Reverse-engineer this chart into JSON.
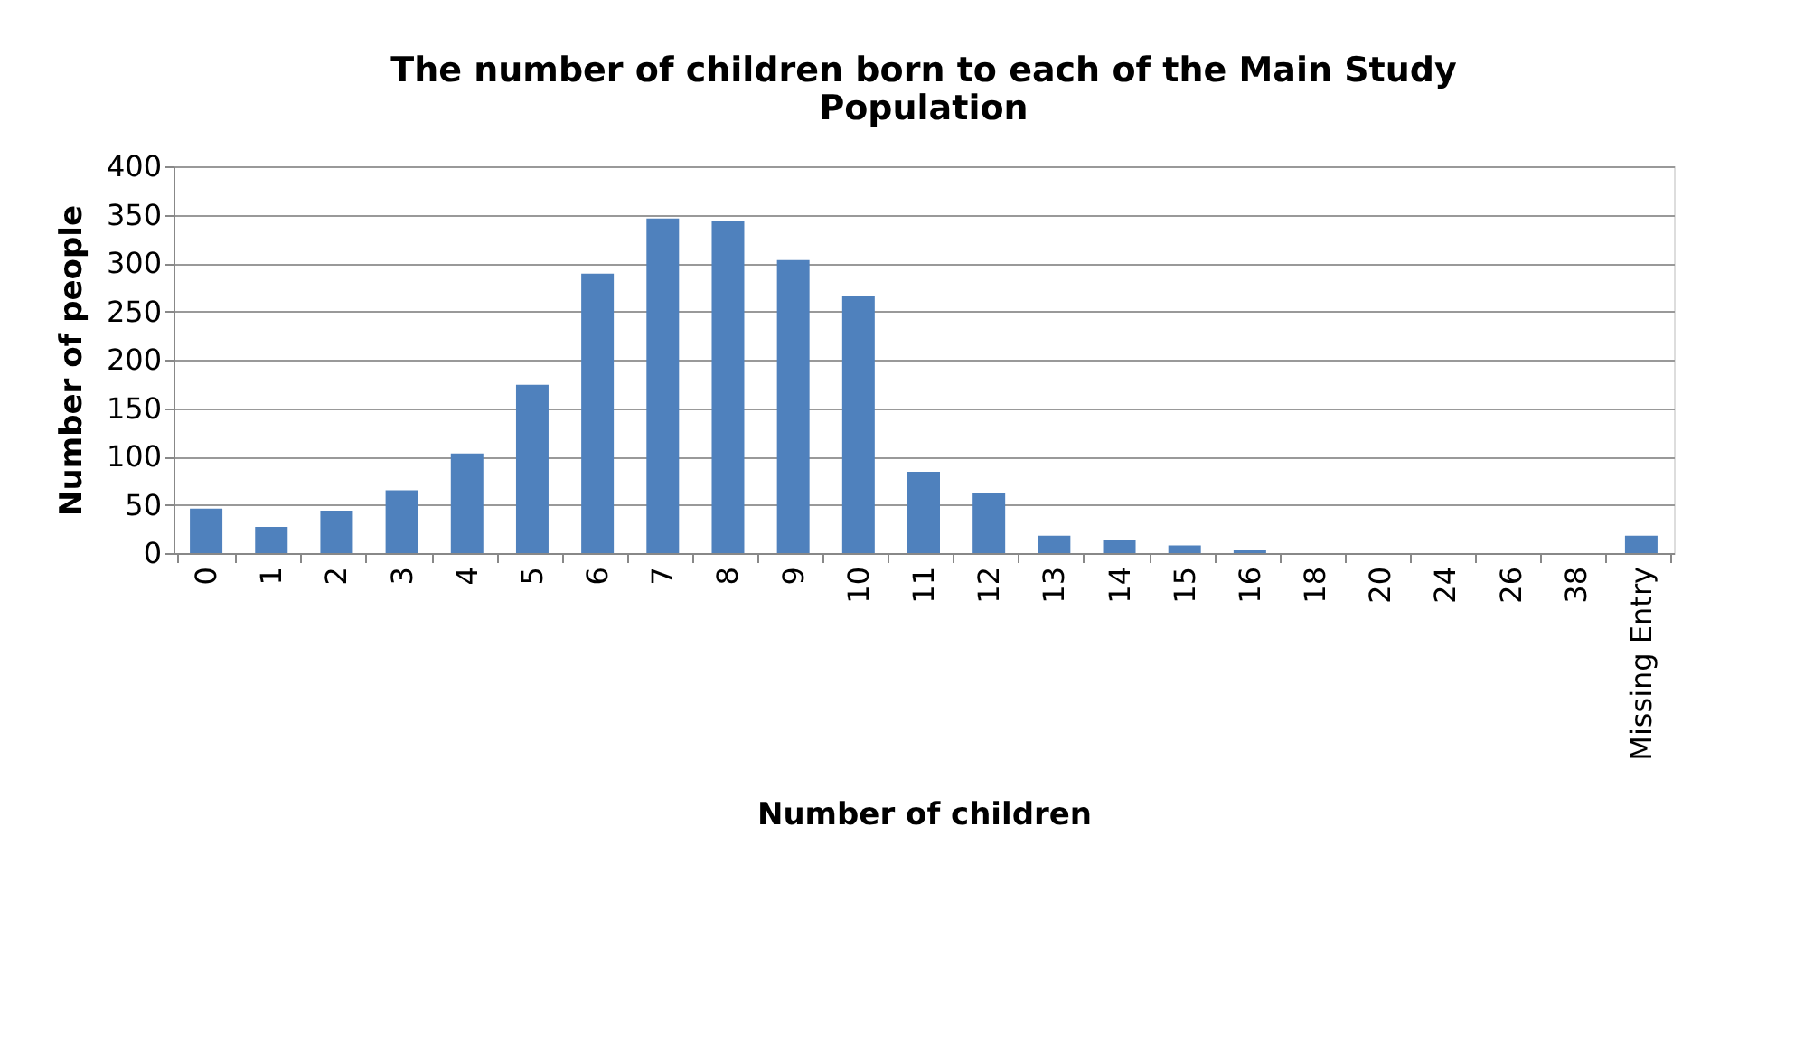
{
  "chart_data": {
    "type": "bar",
    "title": [
      "The number of children born to each of the Main Study",
      "Population"
    ],
    "xlabel": "Number of children",
    "ylabel": "Number of people",
    "categories": [
      "0",
      "1",
      "2",
      "3",
      "4",
      "5",
      "6",
      "7",
      "8",
      "9",
      "10",
      "11",
      "12",
      "13",
      "14",
      "15",
      "16",
      "18",
      "20",
      "24",
      "26",
      "38",
      "Missing Entry"
    ],
    "values": [
      46,
      27,
      44,
      65,
      103,
      174,
      289,
      346,
      344,
      303,
      266,
      84,
      62,
      18,
      13,
      8,
      3,
      0,
      0,
      0,
      0,
      0,
      18
    ],
    "color": "#4f81bd",
    "ylim": [
      0,
      400
    ],
    "yticks": [
      0,
      50,
      100,
      150,
      200,
      250,
      300,
      350,
      400
    ],
    "grid": "y"
  }
}
